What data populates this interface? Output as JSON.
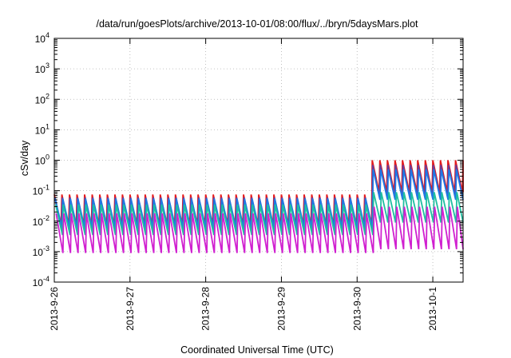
{
  "chart_data": {
    "type": "line",
    "title": "/data/run/goesPlots/archive/2013-10-01/08:00/flux/../bryn/5daysMars.plot",
    "xlabel": "Coordinated Universal Time (UTC)",
    "ylabel": "cSv/day",
    "yscale": "log",
    "ylim": [
      0.0001,
      10000
    ],
    "xlim_days": [
      0,
      5.4
    ],
    "grid": true,
    "legend": "none",
    "y_ticks": [
      {
        "base": "10",
        "exp": "-4",
        "value": 0.0001
      },
      {
        "base": "10",
        "exp": "-3",
        "value": 0.001
      },
      {
        "base": "10",
        "exp": "-2",
        "value": 0.01
      },
      {
        "base": "10",
        "exp": "-1",
        "value": 0.1
      },
      {
        "base": "10",
        "exp": "0",
        "value": 1
      },
      {
        "base": "10",
        "exp": "1",
        "value": 10
      },
      {
        "base": "10",
        "exp": "2",
        "value": 100
      },
      {
        "base": "10",
        "exp": "3",
        "value": 1000
      },
      {
        "base": "10",
        "exp": "4",
        "value": 10000
      }
    ],
    "x_ticks": [
      {
        "label": "2013-9-26",
        "day": 0
      },
      {
        "label": "2013-9-27",
        "day": 1
      },
      {
        "label": "2013-9-28",
        "day": 2
      },
      {
        "label": "2013-9-29",
        "day": 3
      },
      {
        "label": "2013-9-30",
        "day": 4
      },
      {
        "label": "2013-10-1",
        "day": 5
      }
    ],
    "pattern": {
      "spikes_per_day": 10,
      "quiet_end_day": 4.15,
      "event_start_day": 4.2
    },
    "series": [
      {
        "color": "#e41a1c",
        "quiet_peak": 0.075,
        "quiet_trough": 0.007,
        "event_peak": 1.0,
        "event_trough": 0.09
      },
      {
        "color": "#6a3d9a",
        "quiet_peak": 0.06,
        "quiet_trough": 0.005,
        "event_peak": 0.7,
        "event_trough": 0.06
      },
      {
        "color": "#1f78e4",
        "quiet_peak": 0.055,
        "quiet_trough": 0.006,
        "event_peak": 0.5,
        "event_trough": 0.05
      },
      {
        "color": "#1fbfa0",
        "quiet_peak": 0.035,
        "quiet_trough": 0.0035,
        "event_peak": 0.09,
        "event_trough": 0.009
      },
      {
        "color": "#d020d0",
        "quiet_peak": 0.018,
        "quiet_trough": 0.0009,
        "event_peak": 0.03,
        "event_trough": 0.0012
      }
    ]
  }
}
